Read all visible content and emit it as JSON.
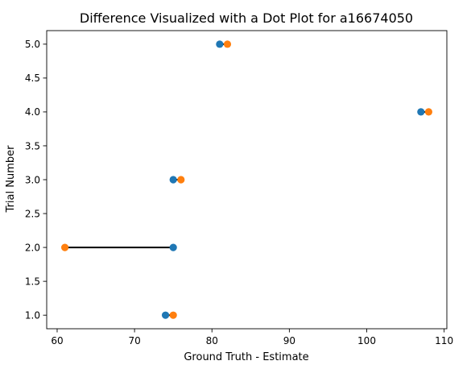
{
  "chart_data": {
    "type": "scatter",
    "title": "Difference Visualized with a Dot Plot for a16674050",
    "xlabel": "Ground Truth - Estimate",
    "ylabel": "Trial Number",
    "xlim": [
      58.65,
      110.35
    ],
    "ylim": [
      0.8,
      5.2
    ],
    "xticks": [
      60,
      70,
      80,
      90,
      100,
      110
    ],
    "xtick_labels": [
      "60",
      "70",
      "80",
      "90",
      "100",
      "110"
    ],
    "yticks": [
      1.0,
      1.5,
      2.0,
      2.5,
      3.0,
      3.5,
      4.0,
      4.5,
      5.0
    ],
    "ytick_labels": [
      "1.0",
      "1.5",
      "2.0",
      "2.5",
      "3.0",
      "3.5",
      "4.0",
      "4.5",
      "5.0"
    ],
    "grid": false,
    "legend": "none",
    "series": [
      {
        "color": "#1f77b4",
        "x": [
          74,
          75,
          75,
          107,
          81
        ],
        "y": [
          1,
          2,
          3,
          4,
          5
        ]
      },
      {
        "color": "#ff7f0e",
        "x": [
          75,
          61,
          76,
          108,
          82
        ],
        "y": [
          1,
          2,
          3,
          4,
          5
        ]
      }
    ],
    "connectors": [
      {
        "x1": 74,
        "x2": 75,
        "y": 1
      },
      {
        "x1": 75,
        "x2": 61,
        "y": 2
      },
      {
        "x1": 75,
        "x2": 76,
        "y": 3
      },
      {
        "x1": 107,
        "x2": 108,
        "y": 4
      },
      {
        "x1": 81,
        "x2": 82,
        "y": 5
      }
    ],
    "connector_color": "#000000"
  }
}
